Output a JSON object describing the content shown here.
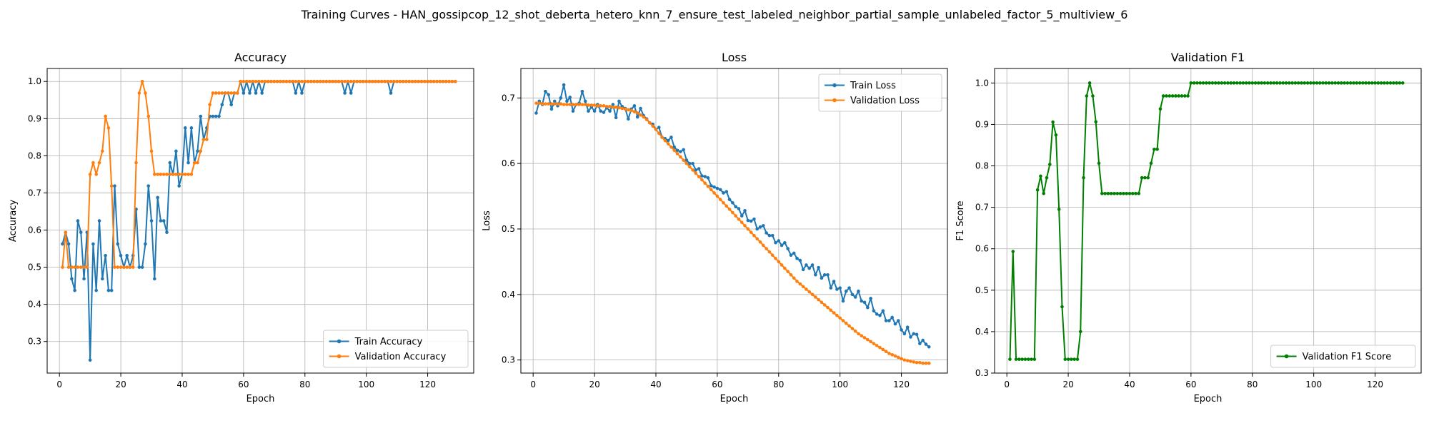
{
  "figure": {
    "suptitle": "Training Curves - HAN_gossipcop_12_shot_deberta_hetero_knn_7_ensure_test_labeled_neighbor_partial_sample_unlabeled_factor_5_multiview_6"
  },
  "colors": {
    "train": "#1f77b4",
    "validation": "#ff7f0e",
    "f1": "#008000",
    "grid": "#b0b0b0"
  },
  "chart_data": [
    {
      "type": "line",
      "title": "Accuracy",
      "xlabel": "Epoch",
      "ylabel": "Accuracy",
      "xlim": [
        -4,
        135
      ],
      "ylim": [
        0.215,
        1.035
      ],
      "xticks": [
        0,
        20,
        40,
        60,
        80,
        100,
        120
      ],
      "yticks": [
        0.3,
        0.4,
        0.5,
        0.6,
        0.7,
        0.8,
        0.9,
        1.0
      ],
      "ytick_labels": [
        "0.3",
        "0.4",
        "0.5",
        "0.6",
        "0.7",
        "0.8",
        "0.9",
        "1.0"
      ],
      "grid": true,
      "legend": "lower-right",
      "x_start": 1,
      "series": [
        {
          "name": "Train Accuracy",
          "color": "#1f77b4",
          "values": [
            0.5625,
            0.5938,
            0.5625,
            0.4688,
            0.4375,
            0.625,
            0.5938,
            0.4688,
            0.5938,
            0.25,
            0.5625,
            0.4375,
            0.625,
            0.4688,
            0.5313,
            0.4375,
            0.4375,
            0.7188,
            0.5625,
            0.5313,
            0.5,
            0.5313,
            0.5,
            0.5313,
            0.6563,
            0.5,
            0.5,
            0.5625,
            0.7188,
            0.625,
            0.4688,
            0.6875,
            0.625,
            0.625,
            0.5938,
            0.7813,
            0.75,
            0.8125,
            0.7188,
            0.75,
            0.875,
            0.7813,
            0.875,
            0.7813,
            0.8125,
            0.9063,
            0.8438,
            0.875,
            0.9063,
            0.9063,
            0.9063,
            0.9063,
            0.9375,
            0.9688,
            0.9688,
            0.9375,
            0.9688,
            0.9688,
            1.0,
            0.9688,
            1.0,
            0.9688,
            1.0,
            0.9688,
            1.0,
            0.9688,
            1.0,
            1.0,
            1.0,
            1.0,
            1.0,
            1.0,
            1.0,
            1.0,
            1.0,
            1.0,
            0.9688,
            1.0,
            0.9688,
            1.0,
            1.0,
            1.0,
            1.0,
            1.0,
            1.0,
            1.0,
            1.0,
            1.0,
            1.0,
            1.0,
            1.0,
            1.0,
            0.9688,
            1.0,
            0.9688,
            1.0,
            1.0,
            1.0,
            1.0,
            1.0,
            1.0,
            1.0,
            1.0,
            1.0,
            1.0,
            1.0,
            1.0,
            0.9688,
            1.0,
            1.0,
            1.0,
            1.0,
            1.0,
            1.0,
            1.0,
            1.0,
            1.0,
            1.0,
            1.0,
            1.0,
            1.0,
            1.0,
            1.0,
            1.0,
            1.0,
            1.0,
            1.0,
            1.0,
            1.0
          ]
        },
        {
          "name": "Validation Accuracy",
          "color": "#ff7f0e",
          "values": [
            0.5,
            0.5938,
            0.5,
            0.5,
            0.5,
            0.5,
            0.5,
            0.5,
            0.5,
            0.75,
            0.7813,
            0.75,
            0.7813,
            0.8125,
            0.9063,
            0.875,
            0.7188,
            0.5,
            0.5,
            0.5,
            0.5,
            0.5,
            0.5,
            0.5,
            0.7813,
            0.9688,
            1.0,
            0.9688,
            0.9063,
            0.8125,
            0.75,
            0.75,
            0.75,
            0.75,
            0.75,
            0.75,
            0.75,
            0.75,
            0.75,
            0.75,
            0.75,
            0.75,
            0.75,
            0.7813,
            0.7813,
            0.8125,
            0.8438,
            0.8438,
            0.9375,
            0.9688,
            0.9688,
            0.9688,
            0.9688,
            0.9688,
            0.9688,
            0.9688,
            0.9688,
            0.9688,
            1.0,
            1.0,
            1.0,
            1.0,
            1.0,
            1.0,
            1.0,
            1.0,
            1.0,
            1.0,
            1.0,
            1.0,
            1.0,
            1.0,
            1.0,
            1.0,
            1.0,
            1.0,
            1.0,
            1.0,
            1.0,
            1.0,
            1.0,
            1.0,
            1.0,
            1.0,
            1.0,
            1.0,
            1.0,
            1.0,
            1.0,
            1.0,
            1.0,
            1.0,
            1.0,
            1.0,
            1.0,
            1.0,
            1.0,
            1.0,
            1.0,
            1.0,
            1.0,
            1.0,
            1.0,
            1.0,
            1.0,
            1.0,
            1.0,
            1.0,
            1.0,
            1.0,
            1.0,
            1.0,
            1.0,
            1.0,
            1.0,
            1.0,
            1.0,
            1.0,
            1.0,
            1.0,
            1.0,
            1.0,
            1.0,
            1.0,
            1.0,
            1.0,
            1.0,
            1.0,
            1.0
          ]
        }
      ]
    },
    {
      "type": "line",
      "title": "Loss",
      "xlabel": "Epoch",
      "ylabel": "Loss",
      "xlim": [
        -4,
        135
      ],
      "ylim": [
        0.28,
        0.745
      ],
      "xticks": [
        0,
        20,
        40,
        60,
        80,
        100,
        120
      ],
      "yticks": [
        0.3,
        0.4,
        0.5,
        0.6,
        0.7
      ],
      "ytick_labels": [
        "0.3",
        "0.4",
        "0.5",
        "0.6",
        "0.7"
      ],
      "grid": true,
      "legend": "top-right",
      "x_start": 1,
      "series": [
        {
          "name": "Train Loss",
          "color": "#1f77b4",
          "values": [
            0.677,
            0.695,
            0.69,
            0.71,
            0.705,
            0.683,
            0.695,
            0.688,
            0.7,
            0.72,
            0.695,
            0.701,
            0.68,
            0.69,
            0.692,
            0.71,
            0.695,
            0.68,
            0.686,
            0.68,
            0.69,
            0.68,
            0.678,
            0.685,
            0.68,
            0.69,
            0.67,
            0.695,
            0.687,
            0.684,
            0.668,
            0.683,
            0.688,
            0.671,
            0.684,
            0.673,
            0.668,
            0.662,
            0.66,
            0.652,
            0.655,
            0.64,
            0.638,
            0.635,
            0.64,
            0.625,
            0.62,
            0.618,
            0.621,
            0.605,
            0.6,
            0.6,
            0.59,
            0.592,
            0.581,
            0.58,
            0.578,
            0.566,
            0.564,
            0.562,
            0.56,
            0.555,
            0.557,
            0.545,
            0.54,
            0.534,
            0.531,
            0.52,
            0.528,
            0.513,
            0.512,
            0.515,
            0.5,
            0.503,
            0.505,
            0.494,
            0.49,
            0.49,
            0.479,
            0.482,
            0.475,
            0.479,
            0.47,
            0.46,
            0.463,
            0.455,
            0.452,
            0.438,
            0.445,
            0.44,
            0.445,
            0.43,
            0.441,
            0.425,
            0.43,
            0.43,
            0.41,
            0.42,
            0.408,
            0.41,
            0.39,
            0.405,
            0.41,
            0.4,
            0.396,
            0.405,
            0.39,
            0.388,
            0.38,
            0.394,
            0.375,
            0.37,
            0.368,
            0.375,
            0.36,
            0.36,
            0.365,
            0.355,
            0.36,
            0.346,
            0.34,
            0.35,
            0.335,
            0.34,
            0.339,
            0.325,
            0.33,
            0.324,
            0.32
          ]
        },
        {
          "name": "Validation Loss",
          "color": "#ff7f0e",
          "values": [
            0.692,
            0.692,
            0.691,
            0.691,
            0.691,
            0.691,
            0.691,
            0.691,
            0.691,
            0.69,
            0.69,
            0.69,
            0.69,
            0.69,
            0.69,
            0.69,
            0.69,
            0.689,
            0.689,
            0.689,
            0.688,
            0.688,
            0.688,
            0.687,
            0.687,
            0.686,
            0.686,
            0.685,
            0.684,
            0.683,
            0.682,
            0.681,
            0.679,
            0.677,
            0.674,
            0.671,
            0.667,
            0.662,
            0.657,
            0.652,
            0.646,
            0.64,
            0.635,
            0.63,
            0.625,
            0.62,
            0.615,
            0.61,
            0.605,
            0.6,
            0.595,
            0.59,
            0.585,
            0.58,
            0.575,
            0.57,
            0.565,
            0.56,
            0.555,
            0.55,
            0.545,
            0.54,
            0.535,
            0.53,
            0.525,
            0.52,
            0.515,
            0.51,
            0.505,
            0.5,
            0.495,
            0.49,
            0.485,
            0.48,
            0.475,
            0.47,
            0.465,
            0.46,
            0.455,
            0.45,
            0.445,
            0.44,
            0.435,
            0.43,
            0.425,
            0.42,
            0.416,
            0.412,
            0.408,
            0.404,
            0.4,
            0.396,
            0.392,
            0.388,
            0.384,
            0.38,
            0.376,
            0.372,
            0.368,
            0.364,
            0.36,
            0.356,
            0.352,
            0.348,
            0.344,
            0.34,
            0.337,
            0.334,
            0.331,
            0.328,
            0.325,
            0.322,
            0.319,
            0.316,
            0.313,
            0.31,
            0.308,
            0.306,
            0.304,
            0.302,
            0.3,
            0.299,
            0.298,
            0.297,
            0.296,
            0.296,
            0.295,
            0.295,
            0.295
          ]
        }
      ]
    },
    {
      "type": "line",
      "title": "Validation F1",
      "xlabel": "Epoch",
      "ylabel": "F1 Score",
      "xlim": [
        -4,
        135
      ],
      "ylim": [
        0.3,
        1.035
      ],
      "xticks": [
        0,
        20,
        40,
        60,
        80,
        100,
        120
      ],
      "yticks": [
        0.3,
        0.4,
        0.5,
        0.6,
        0.7,
        0.8,
        0.9,
        1.0
      ],
      "ytick_labels": [
        "0.3",
        "0.4",
        "0.5",
        "0.6",
        "0.7",
        "0.8",
        "0.9",
        "1.0"
      ],
      "grid": true,
      "legend": "lower-right",
      "x_start": 1,
      "series": [
        {
          "name": "Validation F1 Score",
          "color": "#008000",
          "values": [
            0.3333,
            0.5934,
            0.3333,
            0.3333,
            0.3333,
            0.3333,
            0.3333,
            0.3333,
            0.3333,
            0.7419,
            0.7752,
            0.7333,
            0.7714,
            0.8036,
            0.9059,
            0.8745,
            0.6952,
            0.46,
            0.3333,
            0.3333,
            0.3333,
            0.3333,
            0.3333,
            0.4,
            0.7714,
            0.9688,
            1.0,
            0.9688,
            0.9063,
            0.8062,
            0.7333,
            0.7333,
            0.7333,
            0.7333,
            0.7333,
            0.7333,
            0.7333,
            0.7333,
            0.7333,
            0.7333,
            0.7333,
            0.7333,
            0.7333,
            0.7714,
            0.7714,
            0.7714,
            0.8062,
            0.84,
            0.84,
            0.9373,
            0.9688,
            0.9688,
            0.9688,
            0.9688,
            0.9688,
            0.9688,
            0.9688,
            0.9688,
            0.9688,
            1.0,
            1.0,
            1.0,
            1.0,
            1.0,
            1.0,
            1.0,
            1.0,
            1.0,
            1.0,
            1.0,
            1.0,
            1.0,
            1.0,
            1.0,
            1.0,
            1.0,
            1.0,
            1.0,
            1.0,
            1.0,
            1.0,
            1.0,
            1.0,
            1.0,
            1.0,
            1.0,
            1.0,
            1.0,
            1.0,
            1.0,
            1.0,
            1.0,
            1.0,
            1.0,
            1.0,
            1.0,
            1.0,
            1.0,
            1.0,
            1.0,
            1.0,
            1.0,
            1.0,
            1.0,
            1.0,
            1.0,
            1.0,
            1.0,
            1.0,
            1.0,
            1.0,
            1.0,
            1.0,
            1.0,
            1.0,
            1.0,
            1.0,
            1.0,
            1.0,
            1.0,
            1.0,
            1.0,
            1.0,
            1.0,
            1.0,
            1.0,
            1.0,
            1.0,
            1.0
          ]
        }
      ]
    }
  ]
}
